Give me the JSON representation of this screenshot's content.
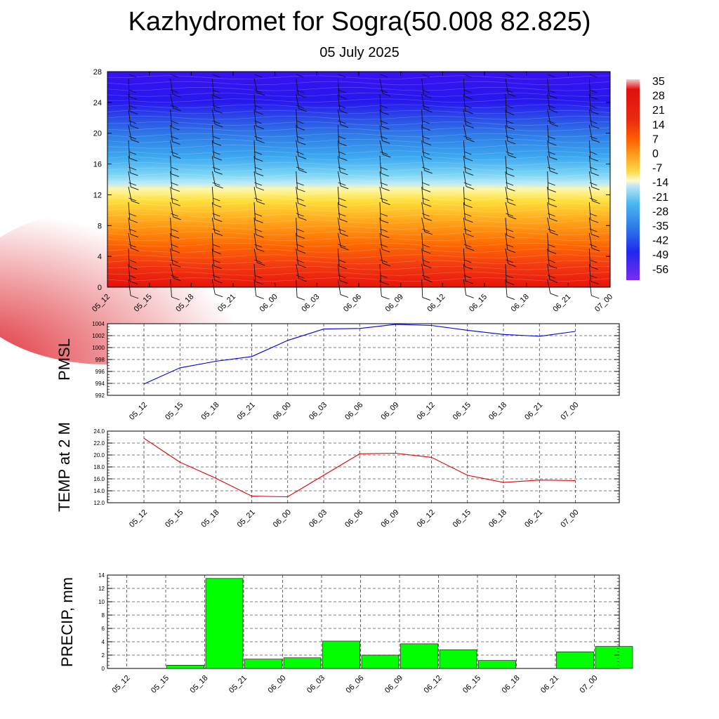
{
  "title": "Kazhydromet for Sogra(50.008 82.825)",
  "date": "05 July 2025",
  "chart_data": [
    {
      "type": "heatmap",
      "description": "Temperature cross-section with wind barbs",
      "x_ticks": [
        "05_12",
        "05_15",
        "05_18",
        "05_21",
        "06_00",
        "06_03",
        "06_06",
        "06_09",
        "06_12",
        "06_15",
        "06_18",
        "06_21",
        "07_00"
      ],
      "y_ticks": [
        0,
        4,
        8,
        12,
        16,
        20,
        24,
        28
      ],
      "ylim": [
        0,
        28
      ],
      "colorbar": {
        "labels": [
          "35",
          "28",
          "21",
          "14",
          "7",
          "0",
          "-7",
          "-14",
          "-21",
          "-28",
          "-35",
          "-42",
          "-49",
          "-56"
        ],
        "range": [
          -63,
          42
        ]
      },
      "colors": {
        "hot": "#e8140c",
        "warm": "#ff8c00",
        "yellow": "#ffe94a",
        "pale": "#fdf7c0",
        "cyan": "#7fd6f4",
        "sky": "#2c9be8",
        "blue": "#2a6fe0",
        "deep": "#2810f0"
      }
    },
    {
      "type": "line",
      "ylabel": "PMSL",
      "x": [
        "05_12",
        "05_15",
        "05_18",
        "05_21",
        "06_00",
        "06_03",
        "06_06",
        "06_09",
        "06_12",
        "06_15",
        "06_18",
        "06_21",
        "07_00"
      ],
      "values": [
        993.9,
        996.6,
        997.7,
        998.5,
        1001.2,
        1003.1,
        1003.2,
        1003.9,
        1003.7,
        1002.9,
        1002.2,
        1001.9,
        1002.7
      ],
      "ylim": [
        992,
        1004
      ],
      "y_ticks": [
        "992",
        "994",
        "996",
        "998",
        "1000",
        "1002",
        "1004"
      ],
      "color": "#0000dd"
    },
    {
      "type": "line",
      "ylabel": "TEMP at 2 M",
      "x": [
        "05_12",
        "05_15",
        "05_18",
        "05_21",
        "06_00",
        "06_03",
        "06_06",
        "06_09",
        "06_12",
        "06_15",
        "06_18",
        "06_21",
        "07_00"
      ],
      "values": [
        22.8,
        18.8,
        16.1,
        13.1,
        13.0,
        16.6,
        20.2,
        20.3,
        19.6,
        16.6,
        15.4,
        15.8,
        15.7
      ],
      "ylim": [
        12,
        24
      ],
      "y_ticks": [
        "12.0",
        "14.0",
        "16.0",
        "18.0",
        "20.0",
        "22.0",
        "24.0"
      ],
      "color": "#dd0000"
    },
    {
      "type": "bar",
      "ylabel": "PRECIP, mm",
      "categories": [
        "05_12",
        "05_15",
        "05_18",
        "05_21",
        "06_00",
        "06_03",
        "06_06",
        "06_09",
        "06_12",
        "06_15",
        "06_18",
        "06_21",
        "07_00"
      ],
      "values": [
        0,
        0.5,
        13.5,
        1.4,
        1.6,
        4.1,
        2.0,
        3.7,
        2.8,
        1.2,
        0,
        2.5,
        3.3
      ],
      "ylim": [
        0,
        14
      ],
      "y_ticks": [
        "0",
        "2",
        "4",
        "6",
        "8",
        "10",
        "12",
        "14"
      ],
      "color": "#00ff00"
    }
  ]
}
